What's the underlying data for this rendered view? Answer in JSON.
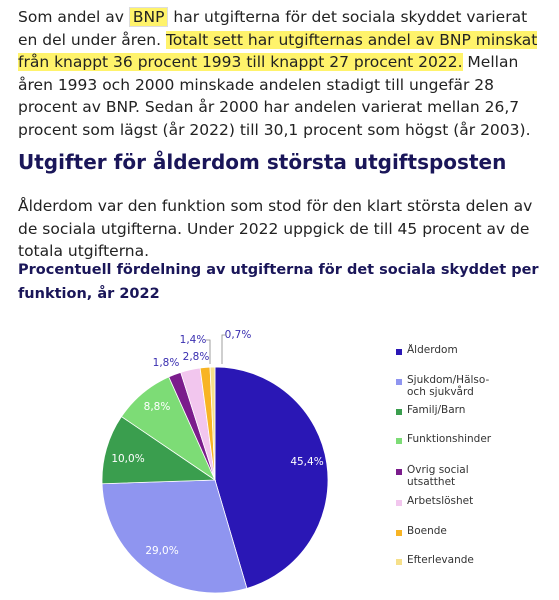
{
  "paragraph_1": [
    "Som andel av ",
    "BNP",
    " har utgifterna för det sociala skyddet varierat en del under åren. ",
    "Totalt sett har utgifternas andel av BNP minskat från knappt 36 procent 1993 till knappt 27 procent 2022.",
    " Mellan åren 1993 och 2000 minskade andelen stadigt till ungefär 28 procent av BNP. Sedan år 2000 har andelen varierat mellan 26,7 procent som lägst (år 2022) till 30,1 procent som högst (år 2003)."
  ],
  "heading": "Utgifter för ålderdom största utgiftsposten",
  "paragraph_2": "Ålderdom var den funktion som stod för den klart största delen av de sociala utgifterna. Under 2022 uppgick de till 45 procent av de totala utgifterna.",
  "chart_data": {
    "type": "pie",
    "title": "Procentuell fördelning av utgifterna för det sociala skyddet per funktion, år 2022",
    "categories": [
      "Ålderdom",
      "Sjukdom/Hälso- och sjukvård",
      "Familj/Barn",
      "Funktionshinder",
      "Övrig social utsatthet",
      "Arbetslöshet",
      "Boende",
      "Efterlevande"
    ],
    "values": [
      45.4,
      29.0,
      10.0,
      8.8,
      1.8,
      2.8,
      1.4,
      0.7
    ],
    "value_labels": [
      "45,4%",
      "29,0%",
      "10,0%",
      "8,8%",
      "1,8%",
      "2,8%",
      "1,4%",
      "0,7%"
    ],
    "colors": [
      "#2a17b5",
      "#8f95f0",
      "#3a9e4e",
      "#7ddc76",
      "#7b1c8c",
      "#f2c6ee",
      "#f8b424",
      "#f6e08a"
    ],
    "legend": "right"
  }
}
